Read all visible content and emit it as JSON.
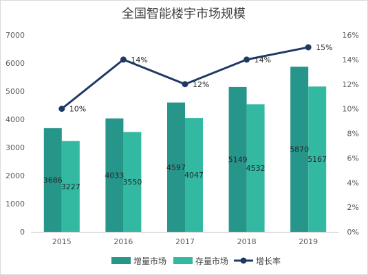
{
  "chart_data": {
    "type": "bar",
    "title": "全国智能楼宇市场规模",
    "categories": [
      "2015",
      "2016",
      "2017",
      "2018",
      "2019"
    ],
    "series": [
      {
        "name": "增量市场",
        "type": "bar",
        "axis": "left",
        "color": "#26958a",
        "values": [
          3686,
          4033,
          4597,
          5149,
          5870
        ],
        "value_labels": [
          "3686",
          "4033",
          "4597",
          "5149",
          "5870"
        ]
      },
      {
        "name": "存量市场",
        "type": "bar",
        "axis": "left",
        "color": "#33b8a1",
        "values": [
          3227,
          3550,
          4047,
          4532,
          5167
        ],
        "value_labels": [
          "3227",
          "3550",
          "4047",
          "4532",
          "5167"
        ]
      },
      {
        "name": "增长率",
        "type": "line",
        "axis": "right",
        "color": "#1f3864",
        "values": [
          10,
          14,
          12,
          14,
          15
        ],
        "value_labels": [
          "10%",
          "14%",
          "12%",
          "14%",
          "15%"
        ]
      }
    ],
    "y_left": {
      "min": 0,
      "max": 7000,
      "ticks": [
        "0",
        "1000",
        "2000",
        "3000",
        "4000",
        "5000",
        "6000",
        "7000"
      ]
    },
    "y_right": {
      "min": 0,
      "max": 16,
      "ticks": [
        "0%",
        "2%",
        "4%",
        "6%",
        "8%",
        "10%",
        "12%",
        "14%",
        "16%"
      ]
    },
    "grid": false,
    "legend_position": "bottom"
  }
}
